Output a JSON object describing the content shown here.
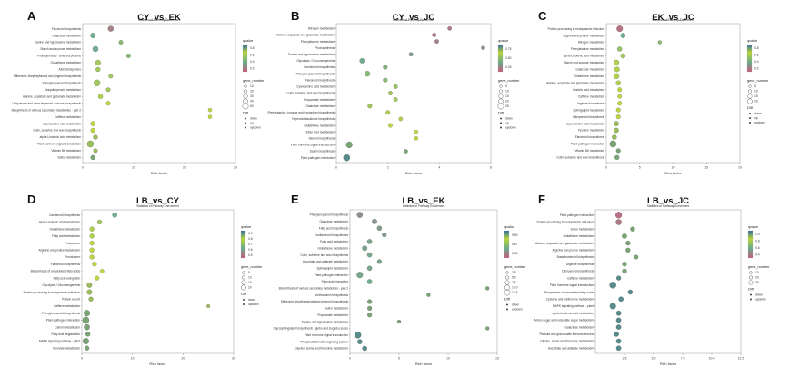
{
  "legend_titles": {
    "color": "qvalue",
    "size": "gene_number",
    "shape": "Diff"
  },
  "panel_subtitle": "Statistics of Pathway Enrichment",
  "x_label": "Rich factor",
  "colors": {
    "low": "#c65b7c",
    "mid": "#6aaa8a",
    "high": "#b9d53a",
    "top": "#2b6aa0",
    "outline": "#333333"
  },
  "chart_data": [
    {
      "type": "scatter",
      "letter": "A",
      "title": "CY_vs_EK",
      "xlim": [
        0,
        30
      ],
      "xticks": [
        "0",
        "10",
        "20",
        "30"
      ],
      "color_ticks": [
        "0.8",
        "0.6",
        "0.4",
        "0.2"
      ],
      "size_ticks": [
        "10",
        "20",
        "30",
        "40",
        "50"
      ],
      "shape_items": [
        "down",
        "up",
        "updown"
      ],
      "pathways": [
        "Flavonoid biosynthesis",
        "Galactose metabolism",
        "Taurine and hypotaurine metabolism",
        "Starch and sucrose metabolism",
        "Photosynthesis - antenna proteins",
        "Glutathione metabolism",
        "ABC transporters",
        "Stilbenoid, diarylheptanoid and gingerol biosynthesis",
        "Phenylpropanoid biosynthesis",
        "Sesquiterpenoid metabolism",
        "Alanine, aspartate and glutamate metabolism",
        "Ubiquinone and other terpenoid-quinone biosynthesis",
        "Biosynthesis of various secondary metabolites - part 2",
        "Caffeine metabolism",
        "Cyanoamino acid metabolism",
        "Cutin, suberine and wax biosynthesis",
        "alpha-Linolenic acid metabolism",
        "Plant hormone signal transduction",
        "Vitamin B6 metabolism",
        "Sulfur metabolism"
      ],
      "rich_factor": [
        5.5,
        2.0,
        7.5,
        2.5,
        9.0,
        3.0,
        3.0,
        5.5,
        2.8,
        5.0,
        3.5,
        5.0,
        25.0,
        25.0,
        2.0,
        2.0,
        2.5,
        1.5,
        2.5,
        2.0
      ],
      "qvalue": [
        0.2,
        0.5,
        0.6,
        0.5,
        0.6,
        0.7,
        0.7,
        0.7,
        0.7,
        0.7,
        0.75,
        0.8,
        0.8,
        0.8,
        0.8,
        0.8,
        0.85,
        0.85,
        0.85,
        0.9
      ],
      "gene_number": [
        12,
        8,
        4,
        12,
        4,
        10,
        6,
        4,
        18,
        4,
        6,
        4,
        2,
        2,
        6,
        6,
        6,
        20,
        4,
        6
      ]
    },
    {
      "type": "scatter",
      "letter": "B",
      "title": "CY_vs_JC",
      "xlim": [
        0,
        6
      ],
      "xticks": [
        "0",
        "2",
        "4",
        "6"
      ],
      "color_ticks": [
        "0.75",
        "0.50",
        "0.25"
      ],
      "size_ticks": [
        "5",
        "10",
        "15",
        "20",
        "25"
      ],
      "shape_items": [
        "down",
        "up",
        "updown"
      ],
      "pathways": [
        "Nitrogen metabolism",
        "Alanine, aspartate and glutamate metabolism",
        "Phenylalanine metabolism",
        "Photosynthesis",
        "Taurine and hypotaurine metabolism",
        "Glycolysis / Gluconeogenesis",
        "Carotenoid biosynthesis",
        "Phenylpropanoid biosynthesis",
        "Flavonoid biosynthesis",
        "Cyanoamino acid metabolism",
        "Cutin, suberine and wax biosynthesis",
        "Propanoate metabolism",
        "Galactose metabolism",
        "Phenylalanine, tyrosine and tryptophan biosynthesis",
        "Terpenoid backbone biosynthesis",
        "Glutathione metabolism",
        "Ether lipid metabolism",
        "Steroid biosynthesis",
        "Plant hormone signal transduction",
        "Zeatin biosynthesis",
        "Plant-pathogen interaction"
      ],
      "rich_factor": [
        4.4,
        3.8,
        3.9,
        5.7,
        2.9,
        1.0,
        1.9,
        1.2,
        1.9,
        2.3,
        2.1,
        2.3,
        1.3,
        2.0,
        2.5,
        2.1,
        3.1,
        3.1,
        0.5,
        2.7,
        0.4
      ],
      "qvalue": [
        0.15,
        0.15,
        0.2,
        0.3,
        0.4,
        0.5,
        0.55,
        0.6,
        0.6,
        0.65,
        0.7,
        0.7,
        0.7,
        0.75,
        0.75,
        0.8,
        0.8,
        0.8,
        0.9,
        0.9,
        0.95
      ],
      "gene_number": [
        4,
        4,
        4,
        3,
        4,
        10,
        6,
        14,
        6,
        5,
        5,
        4,
        6,
        5,
        4,
        5,
        3,
        3,
        22,
        3,
        25
      ]
    },
    {
      "type": "scatter",
      "letter": "C",
      "title": "EK_vs_JC",
      "xlim": [
        0,
        20
      ],
      "xticks": [
        "0",
        "5",
        "10",
        "15",
        "20"
      ],
      "color_ticks": [
        "0.8",
        "0.6",
        "0.4",
        "0.2"
      ],
      "size_ticks": [
        "5",
        "10",
        "15",
        "20"
      ],
      "shape_items": [
        "down",
        "up",
        "updown"
      ],
      "pathways": [
        "Protein processing in endoplasmic reticulum",
        "Arginine and proline metabolism",
        "Nitrogen metabolism",
        "Phenylalanine metabolism",
        "alpha-Linolenic acid metabolism",
        "Starch and sucrose metabolism",
        "Galactose metabolism",
        "Glutathione metabolism",
        "Alanine, aspartate and glutamate metabolism",
        "Linoleic acid metabolism",
        "Caffeine metabolism",
        "Arginine biosynthesis",
        "Sphingolipid metabolism",
        "Diterpenoid biosynthesis",
        "Cyanoamino acid metabolism",
        "Tyrosine metabolism",
        "Flavonoid biosynthesis",
        "Plant-pathogen interaction",
        "Vitamin B6 metabolism",
        "Cutin, suberine and wax biosynthesis"
      ],
      "rich_factor": [
        2.0,
        2.5,
        8.0,
        2.0,
        2.5,
        1.5,
        1.6,
        1.5,
        1.8,
        2.0,
        2.0,
        2.0,
        1.8,
        1.8,
        1.5,
        1.5,
        1.2,
        1.0,
        1.8,
        1.6
      ],
      "qvalue": [
        0.1,
        0.5,
        0.6,
        0.65,
        0.7,
        0.75,
        0.75,
        0.75,
        0.75,
        0.8,
        0.8,
        0.8,
        0.8,
        0.8,
        0.85,
        0.85,
        0.85,
        0.9,
        0.9,
        0.9
      ],
      "gene_number": [
        14,
        6,
        2,
        6,
        6,
        10,
        8,
        10,
        6,
        4,
        3,
        4,
        4,
        4,
        6,
        6,
        6,
        18,
        4,
        5
      ]
    },
    {
      "type": "scatter",
      "letter": "D",
      "title": "LB_vs_CY",
      "xlim": [
        0,
        30
      ],
      "xticks": [
        "0",
        "10",
        "20",
        "30"
      ],
      "color_ticks": [
        "0.9",
        "0.8",
        "0.7",
        "0.6",
        "0.5"
      ],
      "size_ticks": [
        "5",
        "10",
        "15",
        "20"
      ],
      "shape_items": [
        "down",
        "updown"
      ],
      "pathways": [
        "Carotenoid biosynthesis",
        "alpha-Linolenic acid metabolism",
        "Glutathione metabolism",
        "Fatty acid metabolism",
        "Proteasome",
        "Arginine and proline metabolism",
        "Peroxisome",
        "Flavonoid biosynthesis",
        "Biosynthesis of unsaturated fatty acids",
        "Fatty acid elongation",
        "Glycolysis / Gluconeogenesis",
        "Protein processing in endoplasmic reticulum",
        "Protein export",
        "Caffeine metabolism",
        "Phenylpropanoid biosynthesis",
        "Plant-pathogen interaction",
        "Carbon metabolism",
        "Fatty acid degradation",
        "MAPK signaling pathway - plant",
        "Pyruvate metabolism"
      ],
      "rich_factor": [
        6.5,
        3.5,
        2.0,
        2.0,
        2.0,
        2.0,
        2.0,
        2.5,
        4.0,
        3.0,
        1.5,
        1.5,
        1.8,
        25.0,
        1.0,
        0.8,
        1.0,
        1.2,
        0.8,
        1.0
      ],
      "qvalue": [
        0.5,
        0.7,
        0.75,
        0.75,
        0.8,
        0.8,
        0.8,
        0.8,
        0.8,
        0.8,
        0.85,
        0.85,
        0.85,
        0.85,
        0.9,
        0.9,
        0.9,
        0.9,
        0.9,
        0.9
      ],
      "gene_number": [
        6,
        5,
        5,
        5,
        5,
        5,
        5,
        5,
        3,
        4,
        8,
        8,
        5,
        1,
        14,
        18,
        12,
        5,
        14,
        5
      ]
    },
    {
      "type": "scatter",
      "letter": "E",
      "title": "LB_vs_EK",
      "xlim": [
        0,
        15
      ],
      "xticks": [
        "0",
        "5",
        "10",
        "15"
      ],
      "color_ticks": [
        "0.90",
        "0.67",
        "0.45"
      ],
      "size_ticks": [
        "2.5",
        "5.0",
        "7.5",
        "10.0",
        "12.5"
      ],
      "shape_items": [
        "down",
        "updown"
      ],
      "pathways": [
        "Phenylpropanoid biosynthesis",
        "Galactose metabolism",
        "Fatty acid biosynthesis",
        "Isoflavonoid biosynthesis",
        "Fatty acid metabolism",
        "Glutathione metabolism",
        "Cutin, suberine and wax biosynthesis",
        "Ascorbate and aldarate metabolism",
        "Sphingolipid metabolism",
        "Plant-pathogen interaction",
        "Fatty acid elongation",
        "Biosynthesis of various secondary metabolites - part 2",
        "Anthocyanin biosynthesis",
        "Stilbenoid, diarylheptanoid and gingerol biosynthesis",
        "Sulfur metabolism",
        "Propanoate metabolism",
        "Taurine and hypotaurine metabolism",
        "Glycosphingolipid biosynthesis - globo and isoglobo series",
        "Plant hormone signal transduction",
        "Phosphatidylinositol signaling system",
        "Glycine, serine and threonine metabolism"
      ],
      "rich_factor": [
        1.0,
        2.5,
        3.0,
        3.5,
        2.0,
        1.5,
        2.0,
        3.0,
        2.0,
        1.0,
        2.0,
        14.0,
        8.0,
        2.0,
        2.0,
        2.0,
        5.0,
        14.0,
        0.8,
        1.0,
        1.5
      ],
      "qvalue": [
        0.3,
        0.35,
        0.4,
        0.4,
        0.45,
        0.45,
        0.45,
        0.45,
        0.45,
        0.45,
        0.5,
        0.9,
        0.9,
        0.9,
        0.9,
        0.9,
        0.9,
        0.9,
        0.95,
        0.95,
        0.95
      ],
      "gene_number": [
        8,
        5,
        4,
        3,
        4,
        5,
        4,
        3,
        4,
        10,
        4,
        1,
        1,
        3,
        3,
        3,
        1,
        1,
        12,
        4,
        4
      ]
    },
    {
      "type": "scatter",
      "letter": "F",
      "title": "LB_vs_JC",
      "xlim": [
        0,
        12.5
      ],
      "xticks": [
        "2.5",
        "5.0",
        "7.5",
        "10.0",
        "12.5"
      ],
      "color_ticks": [
        "1.0",
        "0.8",
        "0.6",
        "0.4"
      ],
      "size_ticks": [
        "10",
        "20",
        "30"
      ],
      "shape_items": [
        "down",
        "updown"
      ],
      "pathways": [
        "Plant-pathogen interaction",
        "Protein processing in endoplasmic reticulum",
        "Sulfur metabolism",
        "Glutathione metabolism",
        "Alanine, aspartate and glutamate metabolism",
        "Arginine and proline metabolism",
        "Brassinosteroid biosynthesis",
        "Arginine biosynthesis",
        "Diterpenoid biosynthesis",
        "Caffeine metabolism",
        "Plant hormone signal transduction",
        "Biosynthesis of unsaturated fatty acids",
        "Cysteine and methionine metabolism",
        "MAPK signaling pathway - plant",
        "alpha-Linolenic acid metabolism",
        "Amino sugar and nucleotide sugar metabolism",
        "Galactose metabolism",
        "Pentose and glucuronate interconversions",
        "Glycine, serine and threonine metabolism",
        "Ascorbate and aldarate metabolism"
      ],
      "rich_factor": [
        2.0,
        2.0,
        3.2,
        2.5,
        2.8,
        2.8,
        3.5,
        2.5,
        2.5,
        2.0,
        1.5,
        3.0,
        2.2,
        1.5,
        2.0,
        2.0,
        2.0,
        1.8,
        2.0,
        2.0
      ],
      "qvalue": [
        0.1,
        0.15,
        0.9,
        0.9,
        0.9,
        0.9,
        0.9,
        0.9,
        0.9,
        0.95,
        0.95,
        0.95,
        0.95,
        0.95,
        0.95,
        0.95,
        0.95,
        0.95,
        0.95,
        0.95
      ],
      "gene_number": [
        20,
        14,
        6,
        8,
        6,
        6,
        4,
        6,
        6,
        6,
        22,
        6,
        8,
        18,
        8,
        8,
        8,
        8,
        8,
        8
      ]
    }
  ]
}
